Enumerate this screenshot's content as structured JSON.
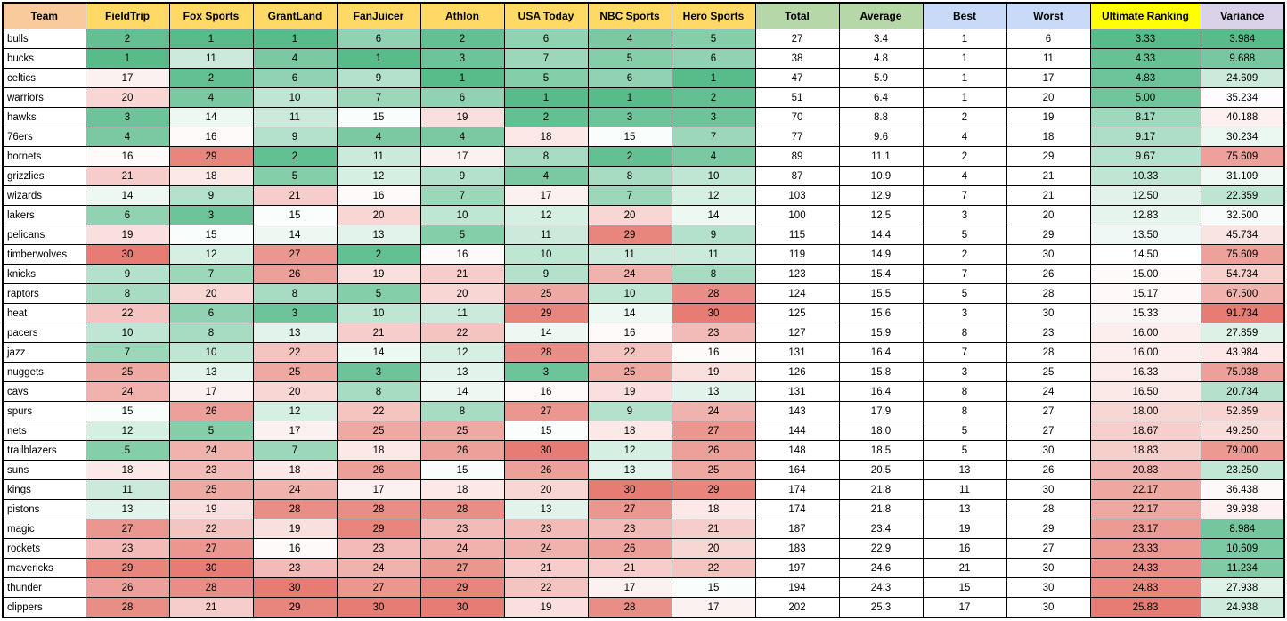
{
  "table": {
    "columns": [
      {
        "key": "team",
        "label": "Team",
        "header_bg": "#F9CB9C",
        "width": 93,
        "type": "text"
      },
      {
        "key": "fieldtrip",
        "label": "FieldTrip",
        "header_bg": "#FFD966",
        "width": 94,
        "scale": "rank"
      },
      {
        "key": "fox_sports",
        "label": "Fox Sports",
        "header_bg": "#FFD966",
        "width": 94,
        "scale": "rank"
      },
      {
        "key": "grantland",
        "label": "GrantLand",
        "header_bg": "#FFD966",
        "width": 94,
        "scale": "rank"
      },
      {
        "key": "fanjuicer",
        "label": "FanJuicer",
        "header_bg": "#FFD966",
        "width": 94,
        "scale": "rank"
      },
      {
        "key": "athlon",
        "label": "Athlon",
        "header_bg": "#FFD966",
        "width": 94,
        "scale": "rank"
      },
      {
        "key": "usa_today",
        "label": "USA Today",
        "header_bg": "#FFD966",
        "width": 94,
        "scale": "rank"
      },
      {
        "key": "nbc_sports",
        "label": "NBC Sports",
        "header_bg": "#FFD966",
        "width": 94,
        "scale": "rank"
      },
      {
        "key": "hero_sports",
        "label": "Hero Sports",
        "header_bg": "#FFD966",
        "width": 94,
        "scale": "rank"
      },
      {
        "key": "total",
        "label": "Total",
        "header_bg": "#B6D7A8",
        "width": 94
      },
      {
        "key": "average",
        "label": "Average",
        "header_bg": "#B6D7A8",
        "width": 94
      },
      {
        "key": "best",
        "label": "Best",
        "header_bg": "#C9DAF8",
        "width": 94
      },
      {
        "key": "worst",
        "label": "Worst",
        "header_bg": "#C9DAF8",
        "width": 94
      },
      {
        "key": "ultimate_ranking",
        "label": "Ultimate Ranking",
        "header_bg": "#FFFF00",
        "width": 124,
        "scale": "ultimate"
      },
      {
        "key": "variance",
        "label": "Variance",
        "header_bg": "#D9D2E9",
        "width": 94,
        "scale": "variance"
      }
    ],
    "rows": [
      [
        "bulls",
        2,
        1,
        1,
        6,
        2,
        6,
        4,
        5,
        27,
        "3.4",
        1,
        6,
        "3.33",
        "3.984"
      ],
      [
        "bucks",
        1,
        11,
        4,
        1,
        3,
        7,
        5,
        6,
        38,
        "4.8",
        1,
        11,
        "4.33",
        "9.688"
      ],
      [
        "celtics",
        17,
        2,
        6,
        9,
        1,
        5,
        6,
        1,
        47,
        "5.9",
        1,
        17,
        "4.83",
        "24.609"
      ],
      [
        "warriors",
        20,
        4,
        10,
        7,
        6,
        1,
        1,
        2,
        51,
        "6.4",
        1,
        20,
        "5.00",
        "35.234"
      ],
      [
        "hawks",
        3,
        14,
        11,
        15,
        19,
        2,
        3,
        3,
        70,
        "8.8",
        2,
        19,
        "8.17",
        "40.188"
      ],
      [
        "76ers",
        4,
        16,
        9,
        4,
        4,
        18,
        15,
        7,
        77,
        "9.6",
        4,
        18,
        "9.17",
        "30.234"
      ],
      [
        "hornets",
        16,
        29,
        2,
        11,
        17,
        8,
        2,
        4,
        89,
        "11.1",
        2,
        29,
        "9.67",
        "75.609"
      ],
      [
        "grizzlies",
        21,
        18,
        5,
        12,
        9,
        4,
        8,
        10,
        87,
        "10.9",
        4,
        21,
        "10.33",
        "31.109"
      ],
      [
        "wizards",
        14,
        9,
        21,
        16,
        7,
        17,
        7,
        12,
        103,
        "12.9",
        7,
        21,
        "12.50",
        "22.359"
      ],
      [
        "lakers",
        6,
        3,
        15,
        20,
        10,
        12,
        20,
        14,
        100,
        "12.5",
        3,
        20,
        "12.83",
        "32.500"
      ],
      [
        "pelicans",
        19,
        15,
        14,
        13,
        5,
        11,
        29,
        9,
        115,
        "14.4",
        5,
        29,
        "13.50",
        "45.734"
      ],
      [
        "timberwolves",
        30,
        12,
        27,
        2,
        16,
        10,
        11,
        11,
        119,
        "14.9",
        2,
        30,
        "14.50",
        "75.609"
      ],
      [
        "knicks",
        9,
        7,
        26,
        19,
        21,
        9,
        24,
        8,
        123,
        "15.4",
        7,
        26,
        "15.00",
        "54.734"
      ],
      [
        "raptors",
        8,
        20,
        8,
        5,
        20,
        25,
        10,
        28,
        124,
        "15.5",
        5,
        28,
        "15.17",
        "67.500"
      ],
      [
        "heat",
        22,
        6,
        3,
        10,
        11,
        29,
        14,
        30,
        125,
        "15.6",
        3,
        30,
        "15.33",
        "91.734"
      ],
      [
        "pacers",
        10,
        8,
        13,
        21,
        22,
        14,
        16,
        23,
        127,
        "15.9",
        8,
        23,
        "16.00",
        "27.859"
      ],
      [
        "jazz",
        7,
        10,
        22,
        14,
        12,
        28,
        22,
        16,
        131,
        "16.4",
        7,
        28,
        "16.00",
        "43.984"
      ],
      [
        "nuggets",
        25,
        13,
        25,
        3,
        13,
        3,
        25,
        19,
        126,
        "15.8",
        3,
        25,
        "16.33",
        "75.938"
      ],
      [
        "cavs",
        24,
        17,
        20,
        8,
        14,
        16,
        19,
        13,
        131,
        "16.4",
        8,
        24,
        "16.50",
        "20.734"
      ],
      [
        "spurs",
        15,
        26,
        12,
        22,
        8,
        27,
        9,
        24,
        143,
        "17.9",
        8,
        27,
        "18.00",
        "52.859"
      ],
      [
        "nets",
        12,
        5,
        17,
        25,
        25,
        15,
        18,
        27,
        144,
        "18.0",
        5,
        27,
        "18.67",
        "49.250"
      ],
      [
        "trailblazers",
        5,
        24,
        7,
        18,
        26,
        30,
        12,
        26,
        148,
        "18.5",
        5,
        30,
        "18.83",
        "79.000"
      ],
      [
        "suns",
        18,
        23,
        18,
        26,
        15,
        26,
        13,
        25,
        164,
        "20.5",
        13,
        26,
        "20.83",
        "23.250"
      ],
      [
        "kings",
        11,
        25,
        24,
        17,
        18,
        20,
        30,
        29,
        174,
        "21.8",
        11,
        30,
        "22.17",
        "36.438"
      ],
      [
        "pistons",
        13,
        19,
        28,
        28,
        28,
        13,
        27,
        18,
        174,
        "21.8",
        13,
        28,
        "22.17",
        "39.938"
      ],
      [
        "magic",
        27,
        22,
        19,
        29,
        23,
        23,
        23,
        21,
        187,
        "23.4",
        19,
        29,
        "23.17",
        "8.984"
      ],
      [
        "rockets",
        23,
        27,
        16,
        23,
        24,
        24,
        26,
        20,
        183,
        "22.9",
        16,
        27,
        "23.33",
        "10.609"
      ],
      [
        "mavericks",
        29,
        30,
        23,
        24,
        27,
        21,
        21,
        22,
        197,
        "24.6",
        21,
        30,
        "24.33",
        "11.234"
      ],
      [
        "thunder",
        26,
        28,
        30,
        27,
        29,
        22,
        17,
        15,
        194,
        "24.3",
        15,
        30,
        "24.83",
        "27.938"
      ],
      [
        "clippers",
        28,
        21,
        29,
        30,
        30,
        19,
        28,
        17,
        202,
        "25.3",
        17,
        30,
        "25.83",
        "24.938"
      ]
    ],
    "scales": {
      "rank": {
        "min": 1,
        "mid": 15.5,
        "max": 30
      },
      "ultimate": {
        "min": 3.33,
        "mid": 14.58,
        "max": 25.83
      },
      "variance": {
        "min": 3.984,
        "mid": 33.867,
        "max": 91.734
      }
    },
    "colors": {
      "scale_green": "#57BB8A",
      "scale_white": "#FFFFFF",
      "scale_red": "#E67C73",
      "grid": "#000000"
    }
  }
}
